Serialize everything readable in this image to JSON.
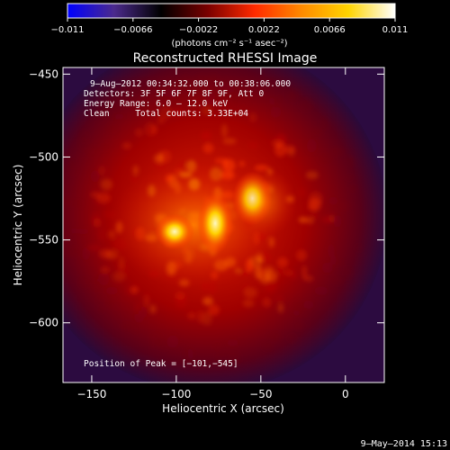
{
  "colorbar": {
    "tick_labels": [
      "−0.011",
      "−0.0066",
      "−0.0022",
      "0.0022",
      "0.0066",
      "0.011"
    ],
    "ticks": [
      -0.011,
      -0.0066,
      -0.0022,
      0.0022,
      0.0066,
      0.011
    ],
    "range": [
      -0.011,
      0.011
    ],
    "unit_label": "(photons cm⁻² s⁻¹ asec⁻²)",
    "colors": [
      "#0000ff",
      "#4b2a8c",
      "#000000",
      "#7a0000",
      "#ff2a00",
      "#ff8a00",
      "#ffd400",
      "#ffffff"
    ]
  },
  "chart_data": {
    "type": "heatmap",
    "title": "Reconstructed RHESSI Image",
    "xlabel": "Heliocentric X (arcsec)",
    "ylabel": "Heliocentric Y (arcsec)",
    "xlim": [
      -167,
      23
    ],
    "ylim": [
      -636,
      -446
    ],
    "xticks": [
      -150,
      -100,
      -50,
      0
    ],
    "yticks": [
      -450,
      -500,
      -550,
      -600
    ],
    "xtick_labels": [
      "−150",
      "−100",
      "−50",
      "0"
    ],
    "ytick_labels": [
      "−450",
      "−500",
      "−550",
      "−600"
    ],
    "sources": [
      {
        "x": -101,
        "y": -545
      },
      {
        "x": -77,
        "y": -540
      },
      {
        "x": -55,
        "y": -525
      }
    ],
    "peak": {
      "x": -101,
      "y": -545
    }
  },
  "info_lines": [
    "9–Aug–2012 00:34:32.000 to 00:38:06.000",
    "Detectors: 3F 5F 6F 7F 8F 9F, Att 0",
    "Energy Range: 6.0 – 12.0 keV",
    "Clean     Total counts: 3.33E+04"
  ],
  "peak_label": "Position of Peak = [−101,−545]",
  "timestamp": "9–May–2014 15:13"
}
